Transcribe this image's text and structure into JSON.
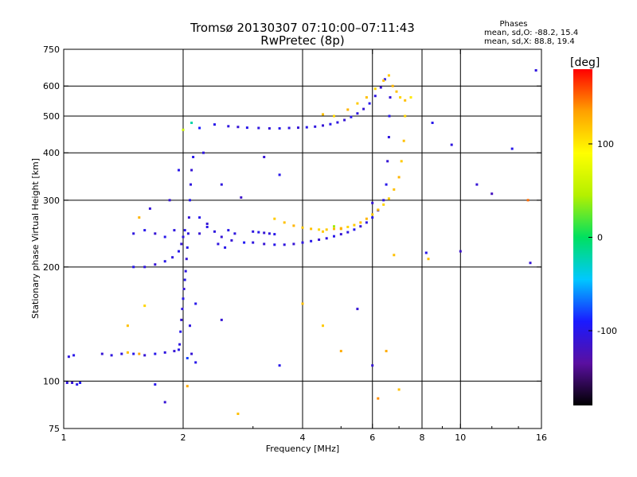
{
  "chart_data": {
    "type": "scatter",
    "title": "Tromsø 20130307 07:10:00–07:11:43",
    "subtitle": "RwPretec (8p)",
    "stats": {
      "heading": "Phases",
      "line_o": "mean, sd,O: -88.2, 15.4",
      "line_x": "mean, sd,X:  88.8, 19.4"
    },
    "xlabel": "Frequency [MHz]",
    "ylabel": "Stationary phase Virtual Height [km]",
    "x_scale": "log",
    "y_scale": "log",
    "xlim": [
      1,
      16
    ],
    "ylim": [
      75,
      750
    ],
    "x_ticks": [
      1,
      2,
      4,
      6,
      8,
      10,
      16
    ],
    "x_tick_labels": [
      "1",
      "2",
      "4",
      "6",
      "8",
      "10",
      "16"
    ],
    "y_ticks": [
      75,
      100,
      200,
      300,
      400,
      500,
      600,
      750
    ],
    "y_tick_labels": [
      "75",
      "100",
      "200",
      "300",
      "400",
      "500",
      "600",
      "750"
    ],
    "grid_x": [
      2,
      4,
      6,
      8,
      10
    ],
    "grid_y": [
      100,
      200,
      300,
      400,
      500,
      600
    ],
    "colorbar": {
      "label": "[deg]",
      "range": [
        -180,
        180
      ],
      "ticks": [
        100,
        0,
        -100
      ],
      "tick_labels": [
        "100",
        "0",
        "-100"
      ],
      "colors": [
        "#000000",
        "#5a0fa0",
        "#1a1aff",
        "#00c8ff",
        "#00e060",
        "#b4f000",
        "#ffff00",
        "#ffa000",
        "#ff0000"
      ]
    },
    "series": [
      {
        "points": [
          [
            1.02,
            99,
            -105
          ],
          [
            1.05,
            99,
            -110
          ],
          [
            1.08,
            98,
            -100
          ],
          [
            1.1,
            99,
            -95
          ],
          [
            1.03,
            116,
            -105
          ],
          [
            1.06,
            117,
            -100
          ],
          [
            1.25,
            118,
            -110
          ],
          [
            1.32,
            117,
            -105
          ],
          [
            1.4,
            118,
            -105
          ],
          [
            1.45,
            119,
            120
          ],
          [
            1.5,
            118,
            -100
          ],
          [
            1.55,
            118,
            130
          ],
          [
            1.6,
            117,
            -110
          ],
          [
            1.7,
            118,
            -100
          ],
          [
            1.8,
            119,
            -105
          ],
          [
            1.9,
            120,
            -110
          ],
          [
            1.95,
            121,
            -100
          ],
          [
            1.5,
            200,
            -100
          ],
          [
            1.6,
            200,
            -105
          ],
          [
            1.7,
            203,
            -110
          ],
          [
            1.8,
            207,
            -100
          ],
          [
            1.88,
            212,
            -105
          ],
          [
            1.95,
            220,
            -100
          ],
          [
            1.98,
            230,
            -110
          ],
          [
            2.0,
            240,
            -105
          ],
          [
            2.02,
            250,
            -100
          ],
          [
            1.96,
            125,
            -105
          ],
          [
            1.97,
            135,
            -100
          ],
          [
            1.98,
            145,
            -110
          ],
          [
            1.99,
            155,
            -105
          ],
          [
            2.0,
            165,
            -100
          ],
          [
            2.01,
            175,
            -110
          ],
          [
            2.02,
            185,
            -100
          ],
          [
            2.03,
            195,
            -105
          ],
          [
            2.04,
            210,
            -110
          ],
          [
            2.05,
            225,
            -100
          ],
          [
            2.06,
            245,
            -105
          ],
          [
            2.07,
            270,
            -110
          ],
          [
            2.08,
            300,
            -100
          ],
          [
            2.09,
            330,
            -105
          ],
          [
            2.1,
            360,
            -110
          ],
          [
            2.12,
            390,
            -100
          ],
          [
            2.05,
            115,
            -80
          ],
          [
            2.1,
            118,
            -110
          ],
          [
            2.15,
            112,
            -100
          ],
          [
            2.08,
            140,
            -105
          ],
          [
            1.5,
            245,
            -105
          ],
          [
            1.6,
            250,
            -100
          ],
          [
            1.7,
            245,
            -110
          ],
          [
            1.8,
            240,
            -100
          ],
          [
            1.9,
            250,
            -105
          ],
          [
            2.2,
            245,
            -110
          ],
          [
            2.3,
            255,
            -100
          ],
          [
            2.4,
            248,
            -105
          ],
          [
            2.5,
            240,
            -110
          ],
          [
            2.6,
            250,
            -100
          ],
          [
            2.7,
            245,
            -105
          ],
          [
            2.85,
            232,
            -95
          ],
          [
            2.2,
            270,
            -100
          ],
          [
            2.3,
            260,
            -110
          ],
          [
            2.45,
            230,
            -105
          ],
          [
            2.55,
            225,
            -100
          ],
          [
            2.65,
            235,
            -110
          ],
          [
            3.0,
            248,
            -105
          ],
          [
            3.1,
            247,
            -100
          ],
          [
            3.2,
            246,
            -110
          ],
          [
            3.3,
            245,
            -105
          ],
          [
            3.4,
            244,
            -100
          ],
          [
            3.0,
            232,
            -105
          ],
          [
            3.2,
            230,
            -110
          ],
          [
            3.4,
            229,
            -100
          ],
          [
            3.6,
            229,
            -105
          ],
          [
            3.8,
            230,
            -110
          ],
          [
            4.0,
            232,
            -105
          ],
          [
            4.2,
            234,
            -100
          ],
          [
            4.4,
            236,
            -110
          ],
          [
            4.6,
            238,
            -105
          ],
          [
            4.8,
            241,
            -100
          ],
          [
            5.0,
            244,
            -110
          ],
          [
            5.2,
            247,
            -105
          ],
          [
            5.4,
            251,
            -100
          ],
          [
            5.6,
            256,
            -110
          ],
          [
            5.8,
            262,
            -105
          ],
          [
            6.0,
            270,
            -100
          ],
          [
            6.2,
            282,
            -110
          ],
          [
            6.4,
            300,
            -105
          ],
          [
            6.5,
            330,
            -100
          ],
          [
            6.55,
            380,
            -110
          ],
          [
            6.6,
            440,
            -105
          ],
          [
            6.62,
            500,
            -100
          ],
          [
            6.65,
            560,
            -110
          ],
          [
            3.4,
            268,
            115
          ],
          [
            3.6,
            262,
            120
          ],
          [
            3.8,
            257,
            125
          ],
          [
            4.0,
            254,
            115
          ],
          [
            4.2,
            252,
            120
          ],
          [
            4.4,
            251,
            110
          ],
          [
            4.6,
            251,
            115
          ],
          [
            4.8,
            252,
            125
          ],
          [
            5.0,
            253,
            120
          ],
          [
            5.2,
            255,
            110
          ],
          [
            5.4,
            258,
            115
          ],
          [
            5.6,
            262,
            120
          ],
          [
            5.8,
            268,
            125
          ],
          [
            6.0,
            275,
            115
          ],
          [
            6.2,
            283,
            120
          ],
          [
            6.4,
            292,
            110
          ],
          [
            6.6,
            303,
            115
          ],
          [
            6.8,
            320,
            120
          ],
          [
            7.0,
            345,
            125
          ],
          [
            7.1,
            380,
            115
          ],
          [
            7.2,
            430,
            120
          ],
          [
            7.25,
            500,
            110
          ],
          [
            7.25,
            550,
            120
          ],
          [
            4.5,
            248,
            115
          ],
          [
            4.8,
            256,
            40
          ],
          [
            5.0,
            252,
            130
          ],
          [
            2.6,
            470,
            -105
          ],
          [
            2.75,
            468,
            -110
          ],
          [
            2.9,
            466,
            -100
          ],
          [
            3.1,
            465,
            -105
          ],
          [
            3.3,
            464,
            -110
          ],
          [
            3.5,
            464,
            -100
          ],
          [
            3.7,
            465,
            -105
          ],
          [
            3.9,
            466,
            -110
          ],
          [
            4.1,
            467,
            -100
          ],
          [
            4.3,
            469,
            -105
          ],
          [
            4.5,
            472,
            -110
          ],
          [
            4.7,
            476,
            -100
          ],
          [
            4.9,
            481,
            -105
          ],
          [
            5.1,
            488,
            -110
          ],
          [
            5.3,
            497,
            -100
          ],
          [
            5.5,
            508,
            -105
          ],
          [
            5.7,
            522,
            -110
          ],
          [
            5.9,
            540,
            -100
          ],
          [
            6.1,
            565,
            -105
          ],
          [
            6.3,
            595,
            -110
          ],
          [
            6.45,
            625,
            -100
          ],
          [
            2.1,
            480,
            -20
          ],
          [
            2.2,
            465,
            -90
          ],
          [
            2.0,
            460,
            60
          ],
          [
            2.4,
            475,
            -100
          ],
          [
            4.5,
            505,
            120
          ],
          [
            4.8,
            500,
            110
          ],
          [
            5.2,
            520,
            125
          ],
          [
            5.5,
            540,
            115
          ],
          [
            5.8,
            560,
            120
          ],
          [
            6.1,
            590,
            110
          ],
          [
            6.4,
            620,
            120
          ],
          [
            6.6,
            640,
            115
          ],
          [
            6.75,
            600,
            125
          ],
          [
            6.9,
            580,
            120
          ],
          [
            7.05,
            560,
            110
          ],
          [
            6.0,
            295,
            -110
          ],
          [
            6.8,
            215,
            120
          ],
          [
            8.2,
            218,
            -100
          ],
          [
            8.3,
            210,
            120
          ],
          [
            9.5,
            420,
            -105
          ],
          [
            10.0,
            220,
            -115
          ],
          [
            11.0,
            330,
            -110
          ],
          [
            12.0,
            312,
            -120
          ],
          [
            13.5,
            410,
            -100
          ],
          [
            14.8,
            300,
            150
          ],
          [
            15.0,
            205,
            -110
          ],
          [
            15.5,
            660,
            -105
          ],
          [
            7.5,
            560,
            100
          ],
          [
            8.5,
            480,
            -100
          ],
          [
            4.0,
            160,
            120
          ],
          [
            5.5,
            155,
            -110
          ],
          [
            6.5,
            120,
            130
          ],
          [
            3.5,
            350,
            -100
          ],
          [
            3.2,
            390,
            -110
          ],
          [
            2.8,
            305,
            -115
          ],
          [
            2.5,
            330,
            -105
          ],
          [
            1.55,
            270,
            125
          ],
          [
            1.65,
            285,
            -110
          ],
          [
            1.95,
            360,
            -100
          ],
          [
            2.25,
            400,
            -105
          ],
          [
            1.85,
            300,
            -110
          ],
          [
            2.15,
            160,
            -100
          ],
          [
            2.5,
            145,
            -110
          ],
          [
            1.7,
            98,
            -100
          ],
          [
            1.8,
            88,
            -110
          ],
          [
            2.05,
            97,
            130
          ],
          [
            2.75,
            82,
            120
          ],
          [
            3.5,
            110,
            -100
          ],
          [
            4.5,
            140,
            115
          ],
          [
            5.0,
            120,
            130
          ],
          [
            6.0,
            110,
            -110
          ],
          [
            7.0,
            95,
            120
          ],
          [
            1.45,
            140,
            120
          ],
          [
            1.6,
            158,
            110
          ],
          [
            6.2,
            90,
            140
          ]
        ]
      }
    ]
  }
}
